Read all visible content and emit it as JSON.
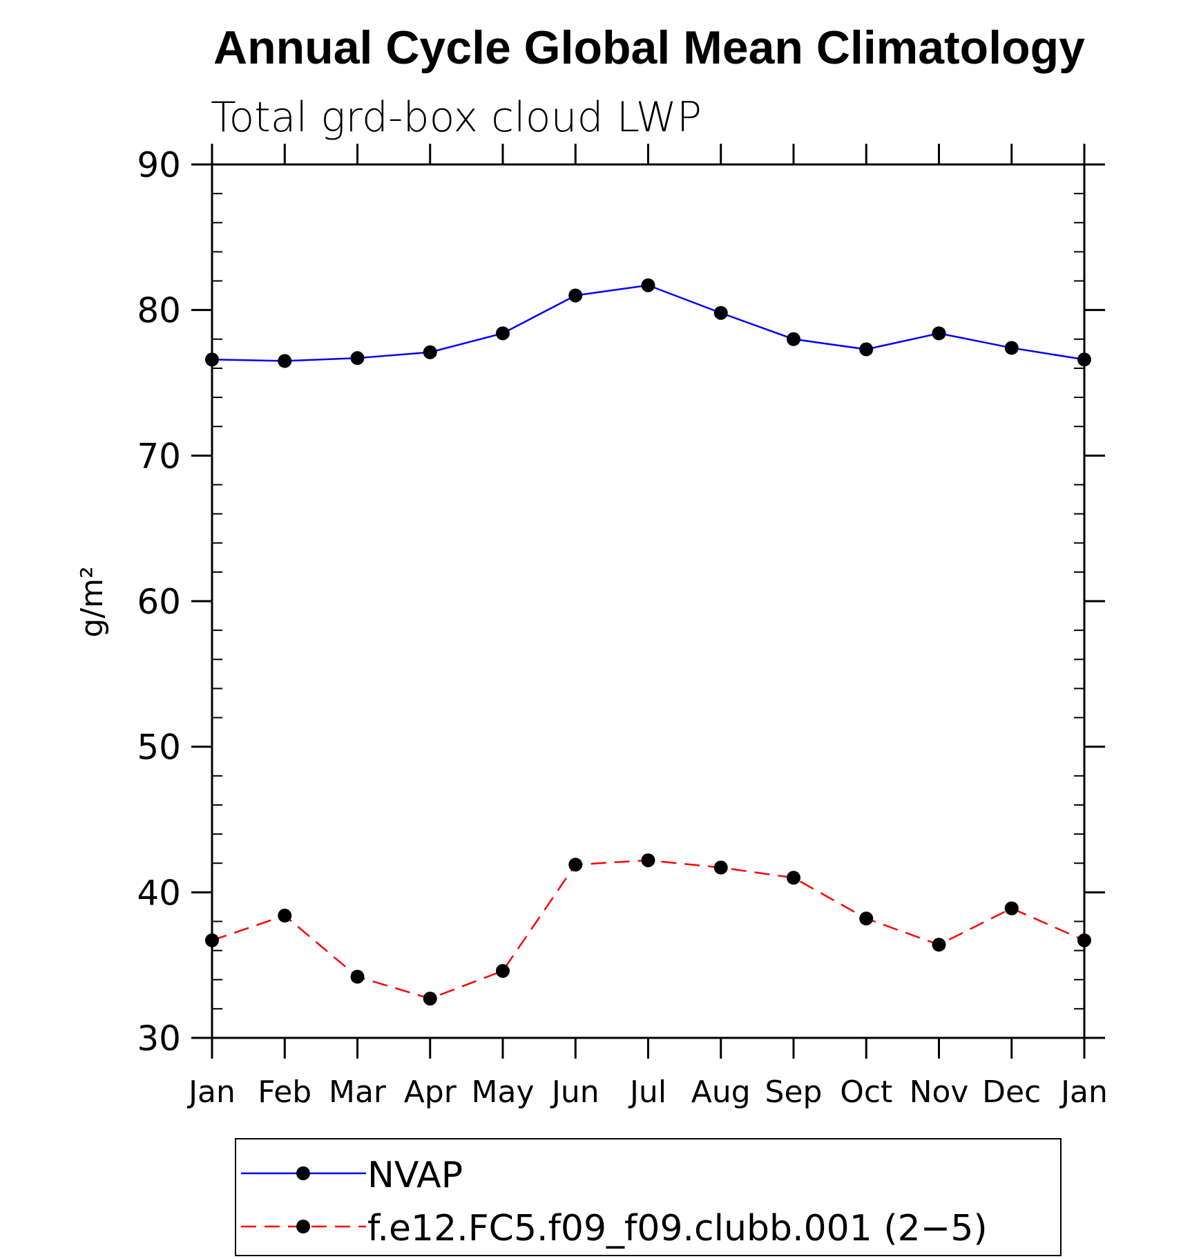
{
  "chart_data": {
    "type": "line",
    "title": "Annual Cycle Global Mean Climatology",
    "subtitle": "Total grd-box cloud LWP",
    "ylabel": "g/m²",
    "xlabel": "",
    "categories": [
      "Jan",
      "Feb",
      "Mar",
      "Apr",
      "May",
      "Jun",
      "Jul",
      "Aug",
      "Sep",
      "Oct",
      "Nov",
      "Dec",
      "Jan"
    ],
    "ylim": [
      30,
      90
    ],
    "yticks": [
      30,
      40,
      50,
      60,
      70,
      80,
      90
    ],
    "grid": false,
    "legend_position": "bottom",
    "series": [
      {
        "name": "NVAP",
        "color": "#0000ff",
        "style": "solid",
        "marker": "filled-circle",
        "values": [
          76.6,
          76.5,
          76.7,
          77.1,
          78.4,
          81.0,
          81.7,
          79.8,
          78.0,
          77.3,
          78.4,
          77.4,
          76.6
        ]
      },
      {
        "name": "f.e12.FC5.f09_f09.clubb.001 (2−5)",
        "color": "#ff0000",
        "style": "dashed",
        "marker": "filled-circle",
        "values": [
          36.7,
          38.4,
          34.2,
          32.7,
          34.6,
          41.9,
          42.2,
          41.7,
          41.0,
          38.2,
          36.4,
          38.9,
          36.7
        ]
      }
    ]
  }
}
